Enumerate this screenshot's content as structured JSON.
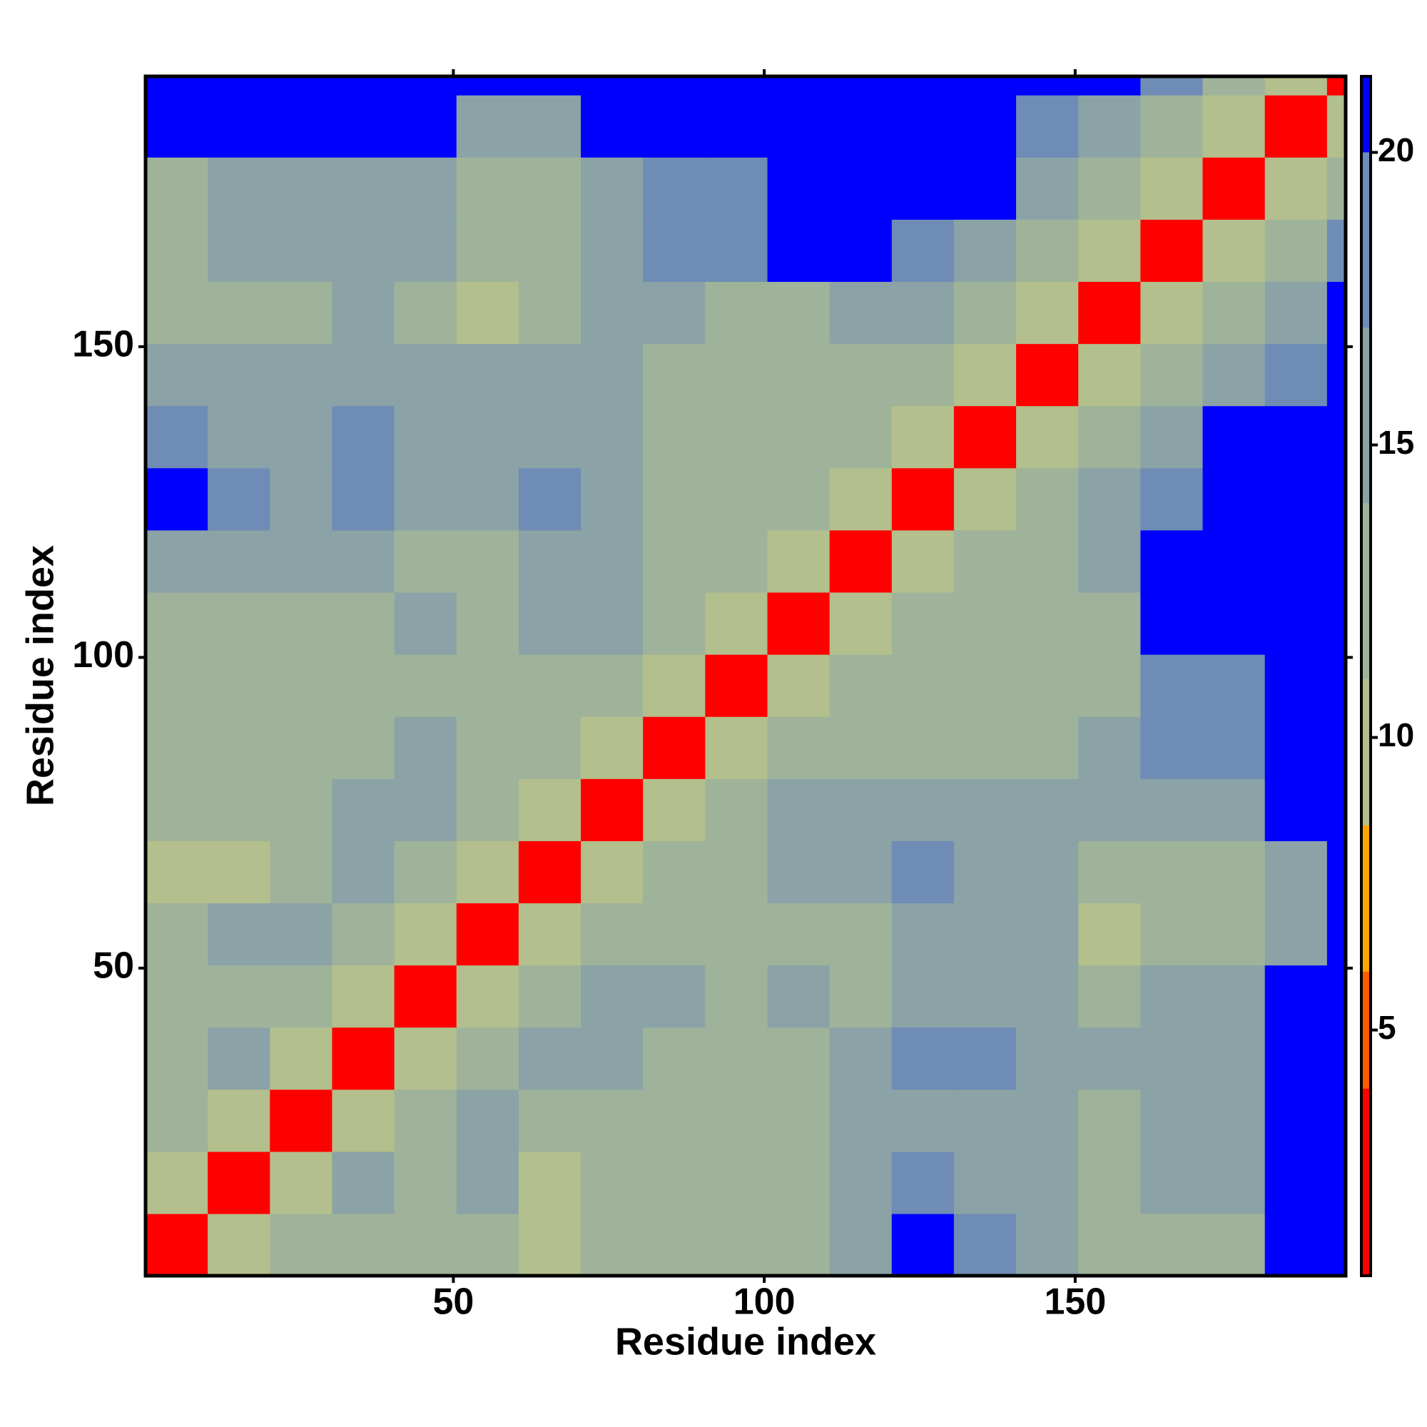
{
  "chart_data": {
    "type": "heatmap",
    "x_label": "Residue index",
    "y_label": "Residue index",
    "x_edges": [
      0.5,
      10.5,
      20.5,
      30.5,
      40.5,
      50.5,
      60.5,
      70.5,
      80.5,
      90.5,
      100.5,
      110.5,
      120.5,
      130.5,
      140.5,
      150.5,
      160.5,
      170.5,
      180.5,
      190.5,
      193.5
    ],
    "y_edges": [
      0.5,
      10.5,
      20.5,
      30.5,
      40.5,
      50.5,
      60.5,
      70.5,
      80.5,
      90.5,
      100.5,
      110.5,
      120.5,
      130.5,
      140.5,
      150.5,
      160.5,
      170.5,
      180.5,
      190.5,
      193.5
    ],
    "values": [
      [
        4,
        11,
        13,
        14,
        14,
        13,
        11,
        14,
        14,
        13,
        13,
        16,
        21,
        18,
        17,
        13,
        12,
        14,
        21,
        21
      ],
      [
        11,
        4,
        11,
        17,
        14,
        15,
        11,
        13,
        13,
        13,
        14,
        17,
        18,
        16,
        15,
        14,
        15,
        16,
        21,
        21
      ],
      [
        13,
        11,
        4,
        11,
        14,
        16,
        12,
        13,
        13,
        12,
        13,
        16,
        17,
        15,
        15,
        14,
        15,
        16,
        21,
        21
      ],
      [
        14,
        17,
        11,
        4,
        11,
        13,
        17,
        17,
        13,
        12,
        12,
        16,
        18,
        18,
        16,
        15,
        16,
        17,
        21,
        21
      ],
      [
        14,
        14,
        14,
        11,
        4,
        10,
        13,
        17,
        16,
        14,
        15,
        14,
        16,
        16,
        15,
        14,
        15,
        15,
        21,
        21
      ],
      [
        13,
        15,
        16,
        13,
        10,
        4,
        11,
        12,
        13,
        13,
        12,
        12,
        16,
        16,
        15,
        11,
        13,
        14,
        16,
        21
      ],
      [
        11,
        11,
        12,
        17,
        13,
        11,
        4,
        10,
        12,
        13,
        17,
        17,
        18,
        17,
        15,
        14,
        12,
        12,
        15,
        21
      ],
      [
        14,
        13,
        13,
        17,
        17,
        12,
        10,
        4,
        10,
        13,
        15,
        17,
        17,
        15,
        15,
        16,
        16,
        16,
        21,
        21
      ],
      [
        14,
        13,
        13,
        13,
        16,
        13,
        12,
        10,
        4,
        10,
        13,
        14,
        13,
        13,
        13,
        15,
        18,
        18,
        21,
        21
      ],
      [
        13,
        13,
        12,
        12,
        14,
        13,
        13,
        13,
        10,
        4,
        10,
        13,
        14,
        14,
        12,
        13,
        19,
        18,
        21,
        21
      ],
      [
        13,
        14,
        13,
        12,
        15,
        12,
        17,
        15,
        13,
        10,
        4,
        10,
        12,
        13,
        12,
        12,
        21,
        21,
        21,
        21
      ],
      [
        16,
        17,
        16,
        16,
        14,
        12,
        17,
        17,
        14,
        13,
        10,
        4,
        10,
        12,
        13,
        15,
        21,
        21,
        21,
        21
      ],
      [
        21,
        18,
        17,
        18,
        16,
        16,
        18,
        17,
        13,
        14,
        12,
        10,
        4,
        10,
        12,
        15,
        19,
        21,
        21,
        21
      ],
      [
        18,
        16,
        15,
        18,
        16,
        16,
        17,
        15,
        13,
        14,
        13,
        12,
        10,
        4,
        10,
        14,
        16,
        21,
        21,
        21
      ],
      [
        17,
        15,
        15,
        16,
        15,
        15,
        15,
        15,
        13,
        12,
        12,
        13,
        12,
        10,
        4,
        10,
        13,
        15,
        19,
        21
      ],
      [
        13,
        14,
        14,
        15,
        14,
        11,
        14,
        16,
        15,
        13,
        12,
        15,
        15,
        14,
        10,
        4,
        10,
        12,
        15,
        21
      ],
      [
        12,
        15,
        15,
        16,
        15,
        13,
        12,
        16,
        18,
        19,
        21,
        21,
        19,
        16,
        13,
        10,
        4,
        10,
        13,
        18
      ],
      [
        14,
        16,
        16,
        17,
        15,
        14,
        12,
        16,
        18,
        18,
        21,
        21,
        21,
        21,
        15,
        12,
        10,
        4,
        10,
        14
      ],
      [
        21,
        21,
        21,
        21,
        21,
        16,
        15,
        21,
        21,
        21,
        21,
        21,
        21,
        21,
        19,
        15,
        13,
        10,
        4,
        10
      ],
      [
        21,
        21,
        21,
        21,
        21,
        21,
        21,
        21,
        21,
        21,
        21,
        21,
        21,
        21,
        21,
        21,
        18,
        14,
        10,
        4
      ]
    ],
    "xlim": [
      0.5,
      193.5
    ],
    "ylim": [
      0.5,
      193.5
    ],
    "xticks": [
      50,
      100,
      150
    ],
    "yticks": [
      50,
      100,
      150
    ],
    "zlim": [
      0.8,
      21.3
    ],
    "zticks": [
      5,
      10,
      15,
      20
    ],
    "thresholds": [
      4,
      6,
      8.5,
      11,
      14,
      17,
      20
    ],
    "colors": [
      "#ff0000",
      "#ff5a00",
      "#ffa500",
      "#b3bf8c",
      "#9fb39a",
      "#8ba3a6",
      "#6e8cb6",
      "#0000ff"
    ]
  }
}
